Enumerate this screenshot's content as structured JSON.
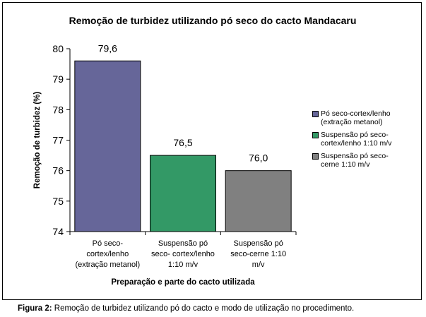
{
  "chart_data": {
    "type": "bar",
    "title": "Remoção de turbidez utilizando pó seco do cacto Mandacaru",
    "xlabel": "Preparação e parte do cacto utilizada",
    "ylabel": "Remoção de turbidez (%)",
    "ylim": [
      74,
      80
    ],
    "yticks": [
      "74",
      "75",
      "76",
      "77",
      "78",
      "79",
      "80"
    ],
    "grid": false,
    "legend_position": "right",
    "categories": [
      [
        "Pó seco-",
        "cortex/lenho",
        "(extração metanol)"
      ],
      [
        "Suspensão pó",
        "seco- cortex/lenho",
        "1:10 m/v"
      ],
      [
        "Suspensão pó",
        "seco-cerne  1:10",
        "m/v"
      ]
    ],
    "values": [
      79.6,
      76.5,
      76.0
    ],
    "value_labels": [
      "79,6",
      "76,5",
      "76,0"
    ],
    "colors": [
      "#666699",
      "#339966",
      "#808080"
    ],
    "legend": [
      [
        "Pó seco-cortex/lenho",
        "(extração metanol)"
      ],
      [
        "Suspensão pó seco-",
        "cortex/lenho 1:10 m/v"
      ],
      [
        "Suspensão pó seco-",
        "cerne  1:10 m/v"
      ]
    ]
  },
  "caption": {
    "label": "Figura 2:",
    "text": " Remoção de turbidez utilizando pó do cacto e modo de utilização no procedimento."
  }
}
